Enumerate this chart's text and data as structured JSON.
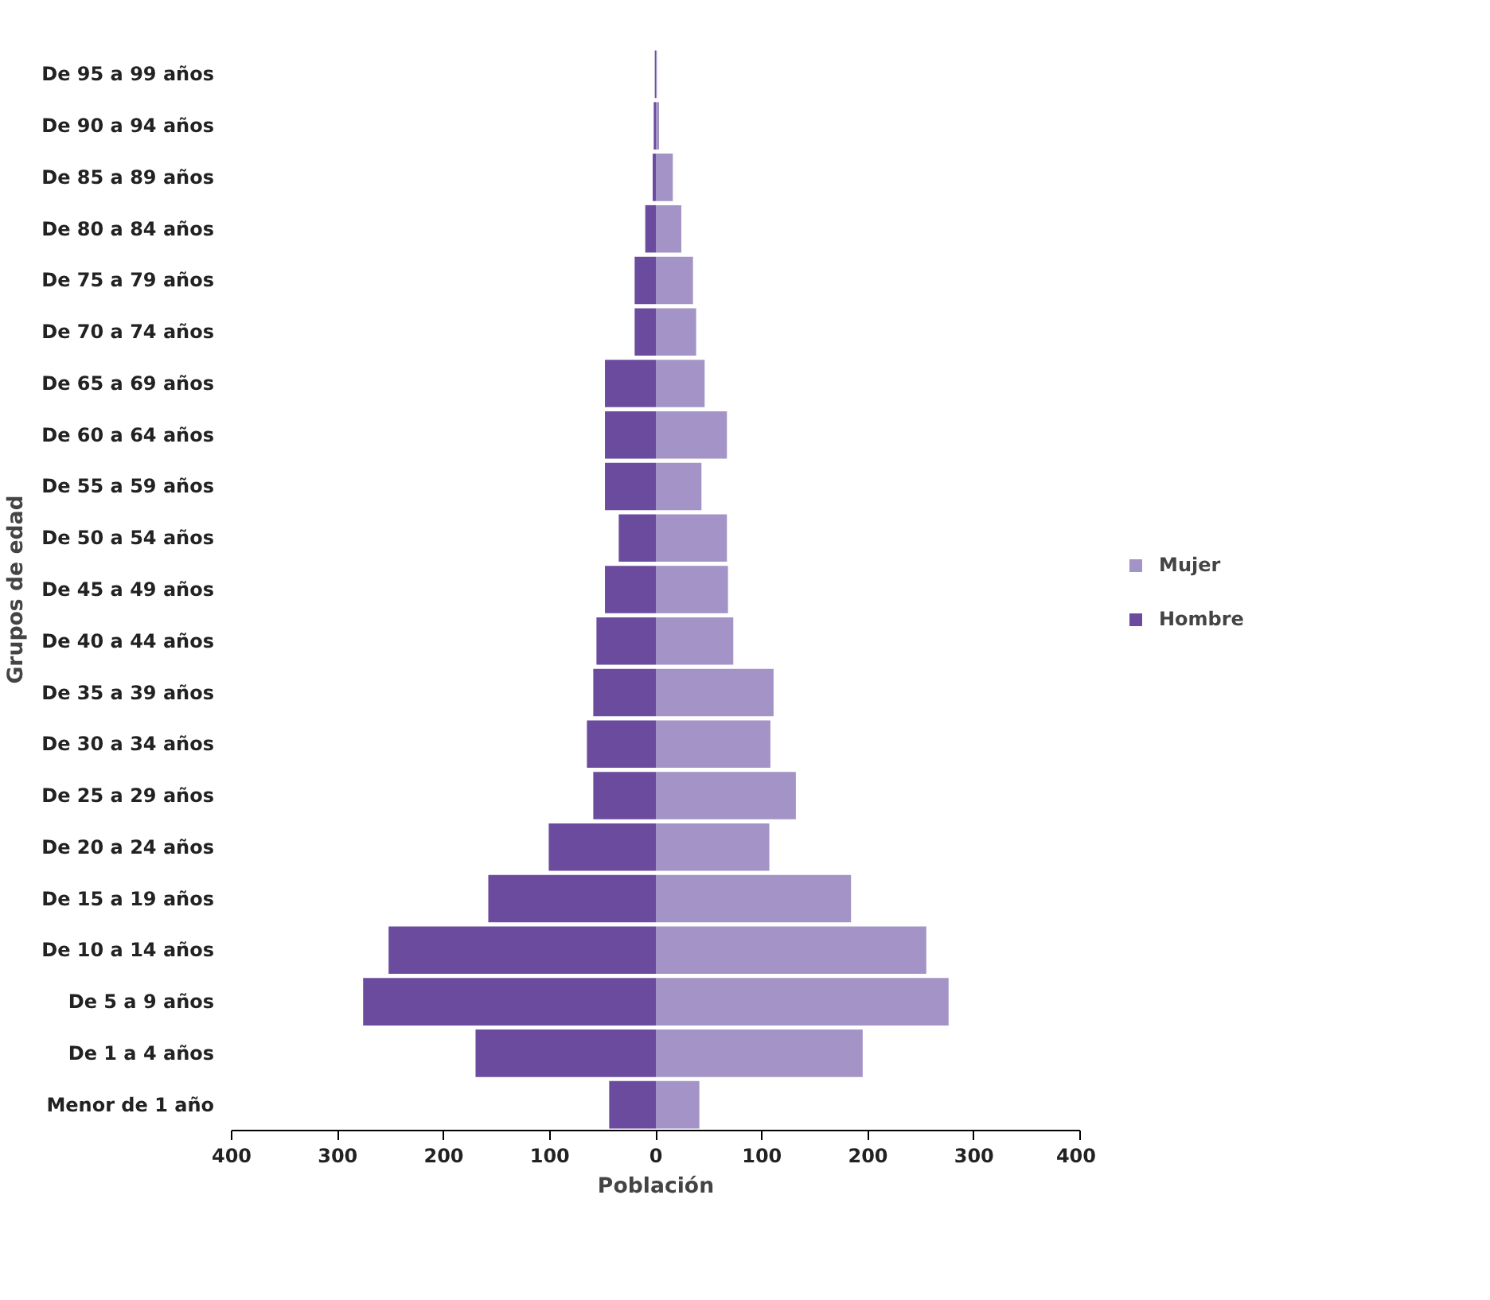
{
  "chart_data": {
    "type": "bar",
    "orientation": "horizontal",
    "stacked": true,
    "xlabel": "Población",
    "ylabel": "Grupos de edad",
    "categories": [
      "De 95 a 99 años",
      "De 90 a 94 años",
      "De 85 a 89 años",
      "De 80 a 84 años",
      "De 75 a 79 años",
      "De 70 a 74 años",
      "De 65 a 69 años",
      "De 60 a 64 años",
      "De 55 a 59 años",
      "De 50 a 54 años",
      "De 45 a 49 años",
      "De 40 a 44 años",
      "De 35 a 39 años",
      "De 30 a 34 años",
      "De 25 a 29 años",
      "De 20 a 24 años",
      "De 15 a 19 años",
      "De 10 a 14 años",
      "De 5 a 9 años",
      "De 1 a 4 años",
      "Menor de 1 año"
    ],
    "series": [
      {
        "name": "Mujer",
        "color": "#a393c6",
        "values": [
          1,
          3,
          16,
          24,
          35,
          38,
          46,
          67,
          43,
          67,
          68,
          73,
          111,
          108,
          132,
          107,
          184,
          255,
          276,
          195,
          41
        ]
      },
      {
        "name": "Hombre",
        "color": "#6b4b9e",
        "values": [
          -1,
          -2,
          -3,
          -10,
          -20,
          -20,
          -48,
          -48,
          -48,
          -35,
          -48,
          -56,
          -59,
          -65,
          -59,
          -101,
          -158,
          -252,
          -276,
          -170,
          -44
        ]
      }
    ],
    "xlim": [
      -400,
      400
    ],
    "xticks": [
      {
        "value": -400,
        "label": "400"
      },
      {
        "value": -300,
        "label": "300"
      },
      {
        "value": -200,
        "label": "200"
      },
      {
        "value": -100,
        "label": "100"
      },
      0,
      100,
      200,
      300,
      400
    ],
    "grid": false,
    "legend": "right"
  }
}
